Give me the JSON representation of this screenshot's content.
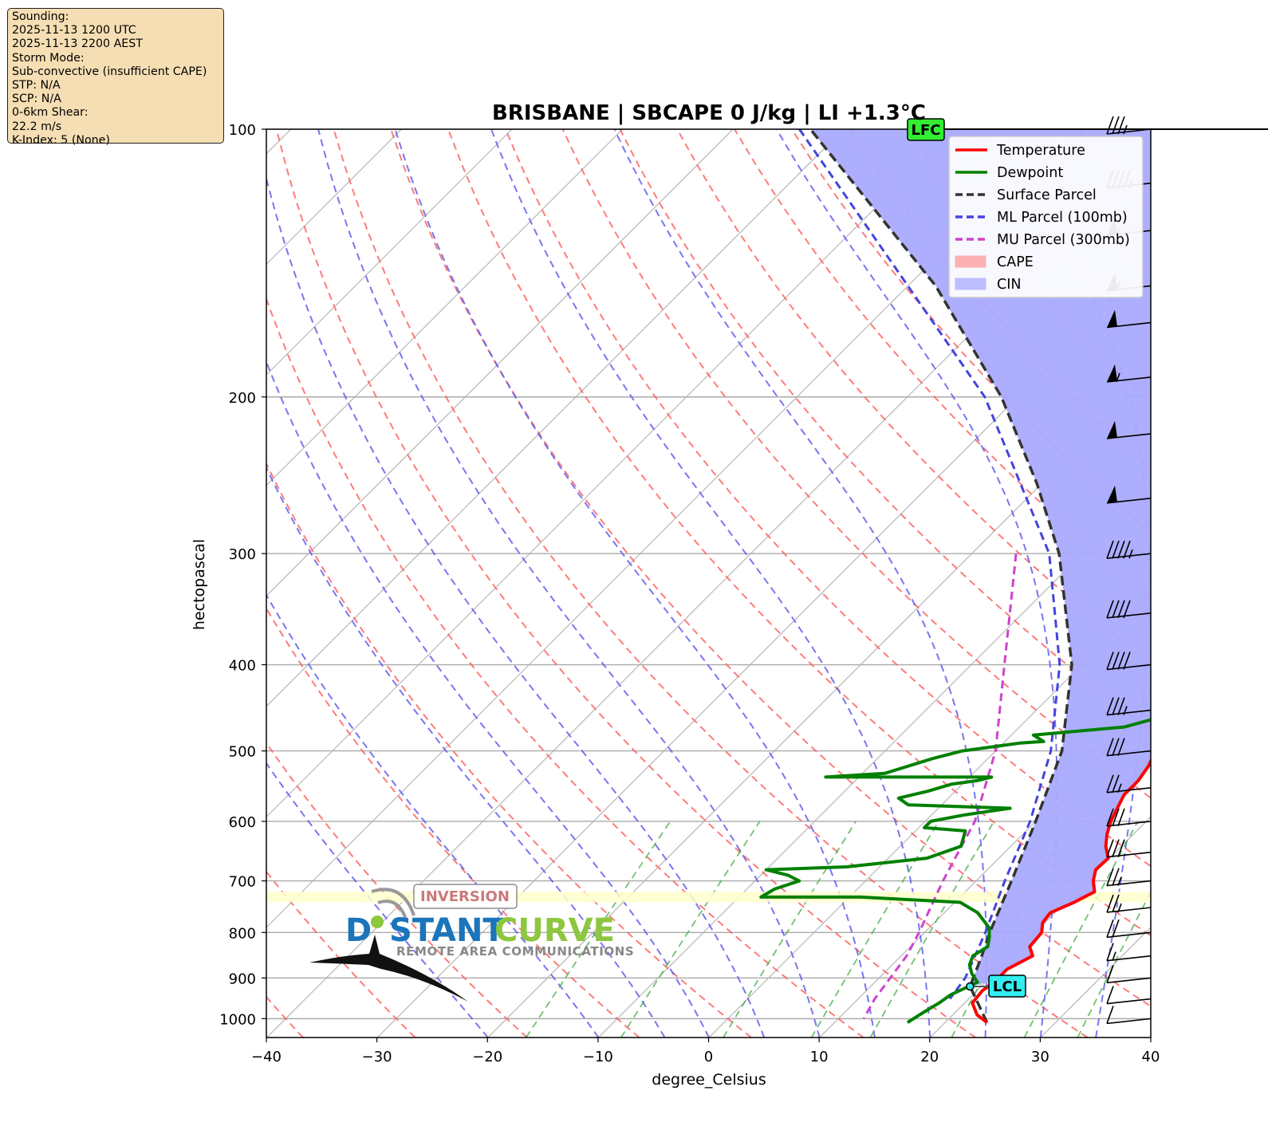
{
  "info_box": {
    "lines": [
      "Sounding:",
      "2025-11-13 1200 UTC",
      "2025-11-13 2200 AEST",
      "Storm Mode:",
      "Sub-convective (insufficient CAPE)",
      "STP: N/A",
      "SCP: N/A",
      "0-6km Shear:",
      "22.2 m/s",
      "K-Index: 5 (None)"
    ]
  },
  "watermark": {
    "brand_a": "D",
    "brand_b": "STANT",
    "brand_c": "CURVE",
    "tagline": "REMOTE AREA COMMUNICATIONS",
    "color_blue": "#1b75bb",
    "color_green": "#8dc63f"
  },
  "chart_data": {
    "type": "line",
    "subtype": "skew-t log-p",
    "title": "BRISBANE | SBCAPE 0 J/kg | LI +1.3°C",
    "xlabel": "degree_Celsius",
    "ylabel": "hectopascal",
    "xlim": [
      -40,
      40
    ],
    "ylim": [
      1050,
      100
    ],
    "xticks": [
      -40,
      -30,
      -20,
      -10,
      0,
      10,
      20,
      30,
      40
    ],
    "yticks": [
      1000,
      900,
      800,
      700,
      600,
      500,
      400,
      300,
      200,
      100
    ],
    "legend_position": "top-right",
    "legend": [
      {
        "label": "Temperature",
        "style": "line",
        "color": "#ff0000"
      },
      {
        "label": "Dewpoint",
        "style": "line",
        "color": "#008000"
      },
      {
        "label": "Surface Parcel",
        "style": "dashed",
        "color": "#333333"
      },
      {
        "label": "ML Parcel (100mb)",
        "style": "dashed",
        "color": "#4444dd"
      },
      {
        "label": "MU Parcel (300mb)",
        "style": "dashed",
        "color": "#cc44cc"
      },
      {
        "label": "CAPE",
        "style": "patch",
        "color": "#ff9999"
      },
      {
        "label": "CIN",
        "style": "patch",
        "color": "#aaaaff"
      }
    ],
    "annotations": {
      "lfc": {
        "label": "LFC",
        "pressure": 100,
        "temp": 11.5,
        "color": "#33ee33"
      },
      "lcl": {
        "label": "LCL",
        "pressure": 920,
        "temp": 19,
        "color": "#33eeee"
      },
      "inversion": {
        "label": "INVERSION",
        "p_top": 720,
        "p_bottom": 740
      }
    },
    "temperature": [
      [
        1010,
        23.8
      ],
      [
        990,
        22.2
      ],
      [
        960,
        20.7
      ],
      [
        930,
        20.5
      ],
      [
        905,
        20.8
      ],
      [
        880,
        20.8
      ],
      [
        850,
        21.9
      ],
      [
        830,
        20.8
      ],
      [
        800,
        20.6
      ],
      [
        780,
        19.8
      ],
      [
        760,
        19.6
      ],
      [
        740,
        20.8
      ],
      [
        720,
        21.7
      ],
      [
        700,
        20.6
      ],
      [
        680,
        19.8
      ],
      [
        660,
        19.9
      ],
      [
        640,
        18.6
      ],
      [
        620,
        17.6
      ],
      [
        600,
        16.8
      ],
      [
        580,
        16.2
      ],
      [
        560,
        15.6
      ],
      [
        540,
        15.6
      ],
      [
        520,
        15.2
      ],
      [
        500,
        14.5
      ],
      [
        480,
        13.7
      ],
      [
        460,
        13.3
      ],
      [
        445,
        13.7
      ],
      [
        430,
        13.3
      ],
      [
        400,
        12.1
      ],
      [
        380,
        12.2
      ],
      [
        360,
        11.1
      ],
      [
        340,
        9.1
      ],
      [
        320,
        7.5
      ],
      [
        300,
        6.0
      ],
      [
        280,
        4.2
      ],
      [
        260,
        2.5
      ],
      [
        240,
        0.5
      ],
      [
        220,
        -0.8
      ],
      [
        210,
        -1.8
      ],
      [
        200,
        -2.2
      ],
      [
        190,
        -2.6
      ],
      [
        175,
        -3.8
      ],
      [
        160,
        -5.8
      ],
      [
        150,
        -7.3
      ],
      [
        140,
        -8.3
      ],
      [
        130,
        -9.1
      ],
      [
        124,
        -9.8
      ],
      [
        118,
        -7.8
      ],
      [
        112,
        -3.4
      ],
      [
        106,
        -0.2
      ],
      [
        100,
        -0.1
      ]
    ],
    "dewpoint": [
      [
        1010,
        16.6
      ],
      [
        990,
        17.0
      ],
      [
        960,
        17.7
      ],
      [
        940,
        18.0
      ],
      [
        910,
        19.3
      ],
      [
        890,
        18.0
      ],
      [
        870,
        17.0
      ],
      [
        850,
        16.5
      ],
      [
        830,
        17.0
      ],
      [
        810,
        16.3
      ],
      [
        790,
        15.4
      ],
      [
        760,
        13.0
      ],
      [
        740,
        10.5
      ],
      [
        730,
        1.0
      ],
      [
        730,
        -8.0
      ],
      [
        715,
        -7.5
      ],
      [
        700,
        -6.0
      ],
      [
        690,
        -7.5
      ],
      [
        680,
        -10.0
      ],
      [
        675,
        -3.0
      ],
      [
        660,
        3.5
      ],
      [
        640,
        5.5
      ],
      [
        615,
        4.5
      ],
      [
        610,
        0.5
      ],
      [
        600,
        0.5
      ],
      [
        590,
        3.0
      ],
      [
        580,
        6.5
      ],
      [
        575,
        -3.0
      ],
      [
        565,
        -4.5
      ],
      [
        555,
        -2.5
      ],
      [
        545,
        -1.0
      ],
      [
        540,
        1.0
      ],
      [
        535,
        2.0
      ],
      [
        535,
        -13.0
      ],
      [
        530,
        -8.0
      ],
      [
        510,
        -5.0
      ],
      [
        500,
        -3.0
      ],
      [
        490,
        1.5
      ],
      [
        488,
        3.5
      ],
      [
        480,
        2.0
      ],
      [
        470,
        9.5
      ],
      [
        455,
        12.5
      ],
      [
        445,
        13.0
      ],
      [
        430,
        12.0
      ],
      [
        400,
        10.3
      ],
      [
        380,
        10.6
      ],
      [
        360,
        8.2
      ],
      [
        340,
        6.5
      ],
      [
        320,
        5.4
      ],
      [
        300,
        3.5
      ],
      [
        280,
        1.9
      ],
      [
        260,
        -1.0
      ],
      [
        240,
        -2.6
      ],
      [
        220,
        -6.0
      ],
      [
        215,
        -13.4
      ],
      [
        205,
        -10.8
      ],
      [
        195,
        -12.8
      ],
      [
        185,
        -12.5
      ],
      [
        175,
        -12.1
      ],
      [
        160,
        -11.6
      ],
      [
        150,
        -11.2
      ],
      [
        140,
        -8.6
      ],
      [
        130,
        -7.7
      ],
      [
        120,
        -7.0
      ],
      [
        112,
        -5.3
      ],
      [
        106,
        -3.6
      ],
      [
        100,
        -2.8
      ]
    ],
    "surface_parcel": [
      [
        1010,
        23.8
      ],
      [
        920,
        19.0
      ],
      [
        850,
        17.3
      ],
      [
        800,
        15.9
      ],
      [
        700,
        13.2
      ],
      [
        600,
        10.0
      ],
      [
        500,
        6.0
      ],
      [
        400,
        -0.9
      ],
      [
        300,
        -12.1
      ],
      [
        250,
        -20.5
      ],
      [
        200,
        -31.5
      ],
      [
        150,
        -47.5
      ],
      [
        100,
        -73.0
      ]
    ],
    "wind_barbs_kt": [
      [
        1000,
        10
      ],
      [
        950,
        12
      ],
      [
        900,
        14
      ],
      [
        850,
        18
      ],
      [
        800,
        22
      ],
      [
        750,
        26
      ],
      [
        700,
        28
      ],
      [
        650,
        33
      ],
      [
        600,
        33
      ],
      [
        550,
        29
      ],
      [
        500,
        32
      ],
      [
        450,
        36
      ],
      [
        400,
        40
      ],
      [
        350,
        42
      ],
      [
        300,
        48
      ],
      [
        260,
        50
      ],
      [
        220,
        52
      ],
      [
        190,
        55
      ],
      [
        165,
        52
      ],
      [
        150,
        55
      ],
      [
        130,
        55
      ],
      [
        115,
        48
      ],
      [
        100,
        35
      ]
    ]
  }
}
